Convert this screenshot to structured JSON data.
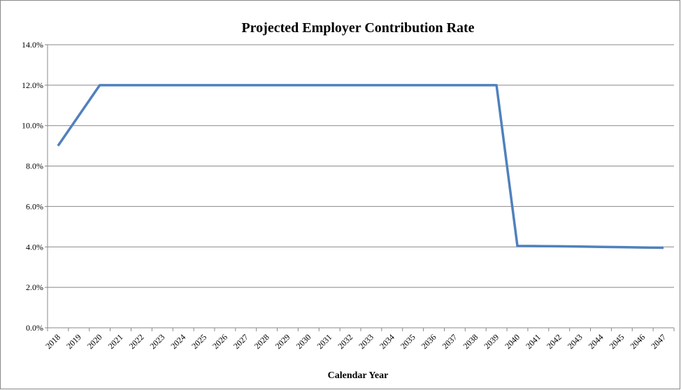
{
  "chart_data": {
    "type": "line",
    "title": "Projected Employer Contribution Rate",
    "x_label": "Calendar Year",
    "categories": [
      "2018",
      "2019",
      "2020",
      "2021",
      "2022",
      "2023",
      "2024",
      "2025",
      "2026",
      "2027",
      "2028",
      "2029",
      "2030",
      "2031",
      "2032",
      "2033",
      "2034",
      "2035",
      "2036",
      "2037",
      "2038",
      "2039",
      "2040",
      "2041",
      "2042",
      "2043",
      "2044",
      "2045",
      "2046",
      "2047"
    ],
    "series": [
      {
        "name": "Employer Contribution Rate",
        "color": "#4f81bd",
        "values": [
          9,
          10.5,
          12,
          12,
          12,
          12,
          12,
          12,
          12,
          12,
          12,
          12,
          12,
          12,
          12,
          12,
          12,
          12,
          12,
          12,
          12,
          12,
          4.05,
          4.04,
          4.03,
          4.02,
          4.0,
          3.99,
          3.97,
          3.96
        ]
      }
    ],
    "ylim": [
      0,
      14
    ],
    "yticks": [
      {
        "value": 0,
        "label": "0.0%"
      },
      {
        "value": 2,
        "label": "2.0%"
      },
      {
        "value": 4,
        "label": "4.0%"
      },
      {
        "value": 6,
        "label": "6.0%"
      },
      {
        "value": 8,
        "label": "8.0%"
      },
      {
        "value": 10,
        "label": "10.0%"
      },
      {
        "value": 12,
        "label": "12.0%"
      },
      {
        "value": 14,
        "label": "14.0%"
      }
    ],
    "grid": true,
    "legend": false
  }
}
